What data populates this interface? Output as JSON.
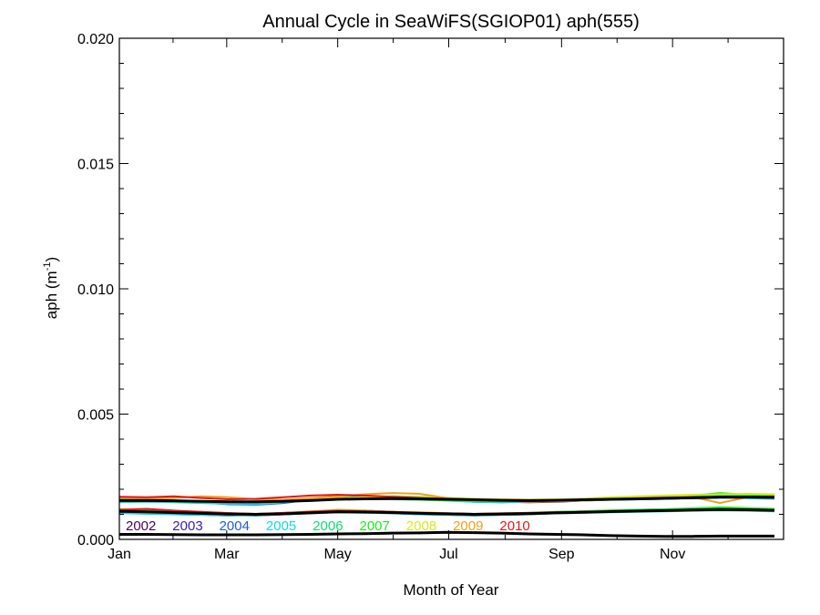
{
  "chart_data": {
    "type": "line",
    "title": "Annual Cycle in SeaWiFS(SGIOP01) aph(555)",
    "xlabel": "Month of Year",
    "ylabel_main": "aph (m",
    "ylabel_sup": "-1",
    "ylabel_close": ")",
    "xlim": [
      1,
      366
    ],
    "ylim": [
      0.0,
      0.02
    ],
    "xticks": [
      {
        "day": 1,
        "label": "Jan"
      },
      {
        "day": 60,
        "label": "Mar"
      },
      {
        "day": 121,
        "label": "May"
      },
      {
        "day": 182,
        "label": "Jul"
      },
      {
        "day": 244,
        "label": "Sep"
      },
      {
        "day": 305,
        "label": "Nov"
      }
    ],
    "yticks": [
      {
        "value": 0.0,
        "label": "0.000"
      },
      {
        "value": 0.005,
        "label": "0.005"
      },
      {
        "value": 0.01,
        "label": "0.010"
      },
      {
        "value": 0.015,
        "label": "0.015"
      },
      {
        "value": 0.02,
        "label": "0.020"
      }
    ],
    "x": [
      1,
      16,
      31,
      46,
      61,
      76,
      91,
      106,
      121,
      136,
      151,
      166,
      181,
      196,
      211,
      226,
      241,
      256,
      271,
      286,
      301,
      316,
      331,
      346,
      361
    ],
    "series": [
      {
        "name": "2002",
        "color": "#4a0055",
        "upper": [
          0.0016,
          0.00158,
          0.0015,
          0.00148,
          0.00142,
          0.00145,
          0.0015,
          0.00155,
          0.0016,
          0.00165,
          0.0017,
          0.00168,
          0.0016,
          0.00155,
          0.0015,
          0.00148,
          0.0015,
          0.00155,
          0.00158,
          0.0016,
          0.00162,
          0.00165,
          0.00168,
          0.0017,
          0.00168
        ],
        "lower": [
          0.00115,
          0.0011,
          0.00105,
          0.001,
          0.00098,
          0.00095,
          0.001,
          0.00105,
          0.0011,
          0.00108,
          0.00105,
          0.001,
          0.00098,
          0.00095,
          0.00098,
          0.001,
          0.00105,
          0.00108,
          0.0011,
          0.00112,
          0.00115,
          0.00118,
          0.0012,
          0.00118,
          0.00115
        ]
      },
      {
        "name": "2003",
        "color": "#3a1ab0",
        "upper": [
          0.00155,
          0.0016,
          0.00152,
          0.0015,
          0.00145,
          0.0014,
          0.00148,
          0.0016,
          0.00175,
          0.00168,
          0.00165,
          0.0016,
          0.00158,
          0.0015,
          0.00148,
          0.0015,
          0.00152,
          0.00158,
          0.0016,
          0.00165,
          0.00168,
          0.0017,
          0.00172,
          0.00168,
          0.00165
        ],
        "lower": [
          0.0011,
          0.00108,
          0.001,
          0.00098,
          0.00095,
          0.001,
          0.00105,
          0.0011,
          0.00115,
          0.0011,
          0.00105,
          0.00102,
          0.001,
          0.00098,
          0.001,
          0.00102,
          0.00108,
          0.0011,
          0.00112,
          0.00115,
          0.00118,
          0.0012,
          0.00122,
          0.0012,
          0.00118
        ]
      },
      {
        "name": "2004",
        "color": "#1e5ae0",
        "upper": [
          0.0015,
          0.00152,
          0.00155,
          0.00148,
          0.0014,
          0.00138,
          0.00145,
          0.00158,
          0.00168,
          0.00172,
          0.0017,
          0.00162,
          0.0016,
          0.00152,
          0.0015,
          0.00152,
          0.00155,
          0.0016,
          0.00162,
          0.00168,
          0.0017,
          0.00175,
          0.00172,
          0.0017,
          0.00168
        ],
        "lower": [
          0.00112,
          0.0011,
          0.00108,
          0.00102,
          0.001,
          0.00098,
          0.00102,
          0.00108,
          0.00112,
          0.00115,
          0.0011,
          0.00105,
          0.001,
          0.001,
          0.00102,
          0.00105,
          0.00108,
          0.00112,
          0.00115,
          0.00118,
          0.0012,
          0.00122,
          0.00125,
          0.00122,
          0.0012
        ]
      },
      {
        "name": "2005",
        "color": "#10d8e0",
        "upper": [
          0.00148,
          0.0015,
          0.00148,
          0.00145,
          0.00142,
          0.0014,
          0.00148,
          0.00155,
          0.0016,
          0.00162,
          0.0016,
          0.00158,
          0.00155,
          0.0015,
          0.00148,
          0.0015,
          0.00152,
          0.00155,
          0.00158,
          0.0016,
          0.00162,
          0.00165,
          0.00168,
          0.00165,
          0.00162
        ],
        "lower": [
          0.00105,
          0.00102,
          0.001,
          0.00098,
          0.00095,
          0.00096,
          0.001,
          0.00104,
          0.00108,
          0.00106,
          0.00104,
          0.001,
          0.00098,
          0.00096,
          0.00098,
          0.001,
          0.00104,
          0.00106,
          0.00108,
          0.0011,
          0.00112,
          0.00114,
          0.00116,
          0.00114,
          0.00112
        ]
      },
      {
        "name": "2006",
        "color": "#10d878",
        "upper": [
          0.00158,
          0.00155,
          0.0015,
          0.00148,
          0.0015,
          0.00148,
          0.00152,
          0.00158,
          0.00165,
          0.00168,
          0.00172,
          0.0017,
          0.00165,
          0.00158,
          0.00152,
          0.0015,
          0.00155,
          0.00158,
          0.0016,
          0.00165,
          0.00168,
          0.00172,
          0.00178,
          0.00172,
          0.0017
        ],
        "lower": [
          0.00118,
          0.00115,
          0.0011,
          0.00105,
          0.00102,
          0.001,
          0.00104,
          0.00108,
          0.00112,
          0.0011,
          0.00108,
          0.00105,
          0.00102,
          0.001,
          0.00102,
          0.00104,
          0.00108,
          0.0011,
          0.00114,
          0.00116,
          0.00118,
          0.0012,
          0.00122,
          0.0012,
          0.00118
        ]
      },
      {
        "name": "2007",
        "color": "#20e820",
        "upper": [
          0.00162,
          0.0016,
          0.00155,
          0.00152,
          0.0015,
          0.00148,
          0.00155,
          0.00162,
          0.00168,
          0.00165,
          0.00162,
          0.00158,
          0.00156,
          0.00154,
          0.00152,
          0.00155,
          0.00158,
          0.00162,
          0.00165,
          0.00168,
          0.0017,
          0.00175,
          0.00185,
          0.00178,
          0.00175
        ],
        "lower": [
          0.0012,
          0.00118,
          0.00112,
          0.00108,
          0.00105,
          0.00102,
          0.00105,
          0.0011,
          0.00112,
          0.0011,
          0.00108,
          0.00106,
          0.00104,
          0.00102,
          0.00104,
          0.00106,
          0.0011,
          0.00112,
          0.00116,
          0.00118,
          0.0012,
          0.00124,
          0.00128,
          0.00125,
          0.00122
        ]
      },
      {
        "name": "2008",
        "color": "#d8e820",
        "upper": [
          0.00155,
          0.00158,
          0.00155,
          0.0015,
          0.00148,
          0.0015,
          0.00155,
          0.0016,
          0.00165,
          0.00168,
          0.0017,
          0.00168,
          0.00165,
          0.00162,
          0.0016,
          0.00158,
          0.0016,
          0.00162,
          0.00168,
          0.00172,
          0.00175,
          0.00178,
          0.0018,
          0.00182,
          0.0018
        ],
        "lower": [
          0.00112,
          0.0011,
          0.00108,
          0.00104,
          0.001,
          0.00098,
          0.00102,
          0.00106,
          0.0011,
          0.00108,
          0.00106,
          0.00104,
          0.00102,
          0.001,
          0.00102,
          0.00104,
          0.00106,
          0.0011,
          0.00112,
          0.00114,
          0.00116,
          0.00118,
          0.0012,
          0.00118,
          0.00116
        ]
      },
      {
        "name": "2009",
        "color": "#f0a020",
        "upper": [
          0.00165,
          0.00162,
          0.00165,
          0.00172,
          0.00168,
          0.0016,
          0.00158,
          0.00165,
          0.00172,
          0.0018,
          0.00185,
          0.00182,
          0.00165,
          0.00158,
          0.00155,
          0.0015,
          0.00152,
          0.00155,
          0.0016,
          0.00165,
          0.00168,
          0.0017,
          0.00145,
          0.00168,
          0.00172
        ],
        "lower": [
          0.00115,
          0.00112,
          0.00108,
          0.00105,
          0.00102,
          0.001,
          0.00105,
          0.00112,
          0.00118,
          0.00115,
          0.0011,
          0.00108,
          0.00105,
          0.001,
          0.00102,
          0.00104,
          0.00106,
          0.00108,
          0.0011,
          0.00112,
          0.00114,
          0.00116,
          0.00118,
          0.00116,
          0.00114
        ]
      },
      {
        "name": "2010",
        "color": "#e01818",
        "upper": [
          0.0017,
          0.00168,
          0.00172,
          0.00165,
          0.0016,
          0.00162,
          0.00168,
          0.00175,
          0.00178,
          0.00175,
          0.0017,
          0.00165,
          0.00162,
          0.00158,
          0.00155,
          0.00152,
          0.00155,
          0.00158,
          0.0016,
          0.00162,
          0.00165,
          0.00168,
          0.0017,
          0.00168,
          0.00165
        ],
        "lower": [
          0.00118,
          0.00122,
          0.00115,
          0.0011,
          0.00105,
          0.00102,
          0.00106,
          0.0011,
          0.00114,
          0.00112,
          0.0011,
          0.00106,
          0.00104,
          0.00102,
          0.00104,
          0.00106,
          0.00108,
          0.0011,
          0.00112,
          0.00114,
          0.00116,
          0.00118,
          0.0012,
          0.00118,
          0.00116
        ]
      }
    ],
    "reference_curves": [
      {
        "color": "#000000",
        "values": [
          0.00155,
          0.00155,
          0.00154,
          0.00152,
          0.0015,
          0.0015,
          0.00152,
          0.00155,
          0.0016,
          0.00162,
          0.00163,
          0.00162,
          0.0016,
          0.00158,
          0.00156,
          0.00155,
          0.00156,
          0.00158,
          0.0016,
          0.00162,
          0.00164,
          0.00166,
          0.00168,
          0.00168,
          0.00168
        ]
      },
      {
        "color": "#000000",
        "values": [
          0.00112,
          0.0011,
          0.00107,
          0.00104,
          0.00101,
          0.001,
          0.00102,
          0.00106,
          0.0011,
          0.00109,
          0.00107,
          0.00104,
          0.00102,
          0.001,
          0.00101,
          0.00103,
          0.00106,
          0.00108,
          0.00111,
          0.00113,
          0.00115,
          0.00117,
          0.00119,
          0.00118,
          0.00116
        ]
      },
      {
        "color": "#000000",
        "values": [
          0.0002,
          0.0002,
          0.00019,
          0.00018,
          0.00018,
          0.00018,
          0.00019,
          0.0002,
          0.00022,
          0.00023,
          0.00025,
          0.00026,
          0.00028,
          0.00027,
          0.00025,
          0.00022,
          0.0002,
          0.00018,
          0.00015,
          0.00013,
          0.00012,
          0.00012,
          0.00013,
          0.00013,
          0.00013
        ]
      }
    ],
    "grid": false,
    "legend_placement": "bottom-left inside plot"
  }
}
